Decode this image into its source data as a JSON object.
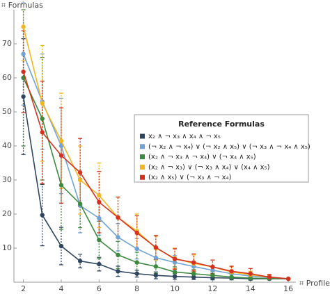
{
  "chart_data": {
    "type": "line",
    "y_label": "⌗ Formulas",
    "x_label": "⌗ Profiles",
    "legend_title": "Reference Formulas",
    "x": [
      2,
      3,
      4,
      5,
      6,
      7,
      8,
      9,
      10,
      11,
      12,
      13,
      14,
      15,
      16
    ],
    "xlim": [
      1.5,
      16.4
    ],
    "ylim": [
      0,
      80
    ],
    "xticks": [
      2,
      4,
      6,
      8,
      10,
      12,
      14,
      16
    ],
    "yticks": [
      10,
      20,
      30,
      40,
      50,
      60,
      70
    ],
    "series": [
      {
        "name": "x₂ ∧ ¬ x₃ ∧ x₄ ∧ ¬ x₅",
        "color": "#2f4560",
        "values": [
          54.5,
          19.7,
          10.6,
          6.2,
          5.3,
          3.2,
          2.5,
          2.0,
          1.7,
          1.5,
          1.3,
          1.2,
          1.0,
          1.0,
          1.0
        ],
        "errors": [
          17,
          9,
          5.5,
          2,
          2,
          1.5,
          1,
          1,
          0.8,
          0.7,
          0.6,
          0.5,
          0.3,
          0.2,
          0
        ]
      },
      {
        "name": "(¬ x₂ ∧ ¬ x₄) ∨ (¬ x₂ ∧ x₅) ∨ (¬ x₃ ∧ ¬ x₄ ∧ x₅)",
        "color": "#6fa3d6",
        "values": [
          67,
          53,
          40,
          22.5,
          18.8,
          13.2,
          9.8,
          7.2,
          5.8,
          4.6,
          3.5,
          2.5,
          1.8,
          1.4,
          1.0
        ],
        "errors": [
          15,
          14,
          14,
          8,
          5,
          4,
          3,
          2.5,
          2,
          1.5,
          1.2,
          1,
          0.8,
          0.5,
          0
        ]
      },
      {
        "name": "(x₂ ∧ ¬ x₃ ∧ ¬ x₄) ∨ (¬ x₄ ∧ x₅)",
        "color": "#3b8a3e",
        "values": [
          60,
          48,
          28.5,
          23,
          12.4,
          8,
          5.8,
          4.6,
          3,
          2.5,
          2,
          1.5,
          1.2,
          1.1,
          1.0
        ],
        "errors": [
          20,
          18,
          13,
          7,
          5.5,
          4,
          3,
          2,
          1.5,
          1.2,
          1,
          0.8,
          0.6,
          0.4,
          0
        ]
      },
      {
        "name": "(x₂ ∧ ¬ x₃) ∨ (¬ x₃ ∧ x₄) ∨ (x₄ ∧ x₅)",
        "color": "#f2b620",
        "values": [
          75,
          52.5,
          41.5,
          30,
          25.5,
          19,
          15,
          10,
          7,
          5.5,
          4.5,
          3,
          2.2,
          1.5,
          1.0
        ],
        "errors": [
          10,
          17,
          14,
          10,
          9.5,
          6,
          5,
          3.5,
          3,
          2.5,
          2,
          1.5,
          1,
          0.6,
          0
        ]
      },
      {
        "name": "(x₂ ∧ x₅) ∨ (¬ x₃ ∧ ¬ x₄)",
        "color": "#d6311f",
        "values": [
          61.8,
          44,
          37.2,
          32.2,
          23.5,
          19,
          14.5,
          10.2,
          6.8,
          5.8,
          4.5,
          3.2,
          2.5,
          1.5,
          1.0
        ],
        "errors": [
          12,
          15,
          14,
          10,
          9,
          6,
          5,
          3.5,
          3,
          2.5,
          2,
          1.5,
          1.5,
          0.8,
          0
        ]
      }
    ]
  }
}
